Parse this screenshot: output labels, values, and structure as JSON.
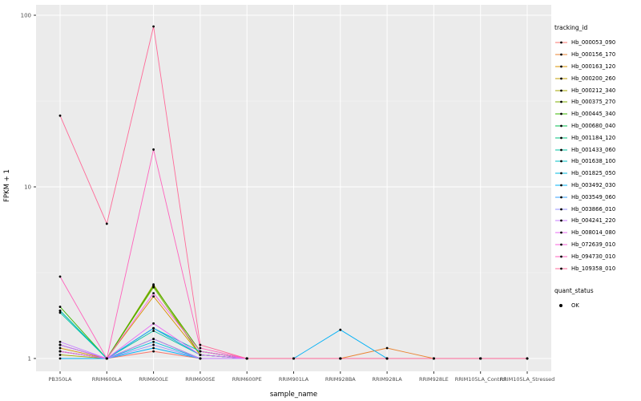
{
  "figure": {
    "ylabel": "FPKM + 1",
    "xlabel": "sample_name"
  },
  "chart_data": {
    "type": "line",
    "x_type": "categorical",
    "yscale": "log10",
    "ylim": [
      1,
      100
    ],
    "y_ticks": [
      "1",
      "10",
      "100"
    ],
    "grid": "on",
    "panel_bg": "#EBEBEB",
    "legend_position": "right",
    "legend_title": "tracking_id",
    "quant_status": {
      "title": "quant_status",
      "label": "OK"
    },
    "xlabel": "sample_name",
    "ylabel": "FPKM + 1",
    "categories": [
      "PB350LA",
      "RRIM600LA",
      "RRIM600LE",
      "RRIM600SE",
      "RRIM600PE",
      "RRIM901LA",
      "RRIM928BA",
      "RRIM928LA",
      "RRIM928LE",
      "RRIM105LA_Control",
      "RRIM105LA_Stressed"
    ],
    "series": [
      {
        "name": "Hb_000053_090",
        "color": "#F8766D",
        "values": [
          1.2,
          1,
          1.1,
          1,
          1,
          1,
          1,
          1,
          1,
          1,
          1
        ]
      },
      {
        "name": "Hb_000156_170",
        "color": "#EA8331",
        "values": [
          1.1,
          1,
          1.3,
          1,
          1,
          1,
          1,
          1.15,
          1,
          1,
          1
        ]
      },
      {
        "name": "Hb_000163_120",
        "color": "#D89000",
        "values": [
          1.15,
          1,
          2.3,
          1.05,
          1,
          1,
          1,
          1,
          1,
          1,
          1
        ]
      },
      {
        "name": "Hb_000200_260",
        "color": "#C09B00",
        "values": [
          1.1,
          1,
          2.65,
          1.1,
          1,
          1,
          1,
          1,
          1,
          1,
          1
        ]
      },
      {
        "name": "Hb_000212_340",
        "color": "#A3A500",
        "values": [
          1.05,
          1,
          2.7,
          1.05,
          1,
          1,
          1,
          1,
          1,
          1,
          1
        ]
      },
      {
        "name": "Hb_000375_270",
        "color": "#7CAE00",
        "values": [
          1.1,
          1,
          2.6,
          1.05,
          1,
          1,
          1,
          1,
          1,
          1,
          1
        ]
      },
      {
        "name": "Hb_000445_340",
        "color": "#39B600",
        "values": [
          2.0,
          1,
          2.65,
          1.1,
          1,
          1,
          1,
          1,
          1,
          1,
          1
        ]
      },
      {
        "name": "Hb_000680_040",
        "color": "#00BB4E",
        "values": [
          1.9,
          1,
          1.5,
          1.05,
          1,
          1,
          1,
          1,
          1,
          1,
          1
        ]
      },
      {
        "name": "Hb_001184_120",
        "color": "#00BF7D",
        "values": [
          1.2,
          1,
          1.3,
          1,
          1,
          1,
          1,
          1,
          1,
          1,
          1
        ]
      },
      {
        "name": "Hb_001433_060",
        "color": "#00C1A3",
        "values": [
          1.85,
          1,
          1.45,
          1.05,
          1,
          1,
          1,
          1,
          1,
          1,
          1
        ]
      },
      {
        "name": "Hb_001638_100",
        "color": "#00BFC4",
        "values": [
          1.9,
          1,
          1.5,
          1.1,
          1,
          1,
          1,
          1,
          1,
          1,
          1
        ]
      },
      {
        "name": "Hb_001825_050",
        "color": "#00BAE0",
        "values": [
          1.1,
          1,
          1.25,
          1,
          1,
          1,
          1,
          1,
          1,
          1,
          1
        ]
      },
      {
        "name": "Hb_003492_030",
        "color": "#00B0F6",
        "values": [
          1,
          1,
          1.15,
          1,
          1,
          1,
          1.47,
          1,
          1,
          1,
          1
        ]
      },
      {
        "name": "Hb_003549_060",
        "color": "#35A2FF",
        "values": [
          1.2,
          1,
          1.5,
          1.05,
          1,
          1,
          1,
          1,
          1,
          1,
          1
        ]
      },
      {
        "name": "Hb_003866_010",
        "color": "#9590FF",
        "values": [
          1.1,
          1,
          1.2,
          1,
          1,
          1,
          1,
          1,
          1,
          1,
          1
        ]
      },
      {
        "name": "Hb_004241_220",
        "color": "#C77CFF",
        "values": [
          1.25,
          1,
          1.3,
          1,
          1,
          1,
          1,
          1,
          1,
          1,
          1
        ]
      },
      {
        "name": "Hb_008014_080",
        "color": "#E76BF3",
        "values": [
          1.2,
          1,
          1.6,
          1.05,
          1,
          1,
          1,
          1,
          1,
          1,
          1
        ]
      },
      {
        "name": "Hb_072639_010",
        "color": "#FA62DB",
        "values": [
          1.1,
          1,
          2.4,
          1.1,
          1,
          1,
          1,
          1,
          1,
          1,
          1
        ]
      },
      {
        "name": "Hb_094730_010",
        "color": "#FF62BC",
        "values": [
          3.0,
          1,
          16.5,
          1.15,
          1,
          1,
          1,
          1,
          1,
          1,
          1
        ]
      },
      {
        "name": "Hb_109358_010",
        "color": "#FF6A98",
        "values": [
          26,
          6.1,
          86,
          1.2,
          1,
          1,
          1,
          1,
          1,
          1,
          1
        ]
      }
    ]
  }
}
